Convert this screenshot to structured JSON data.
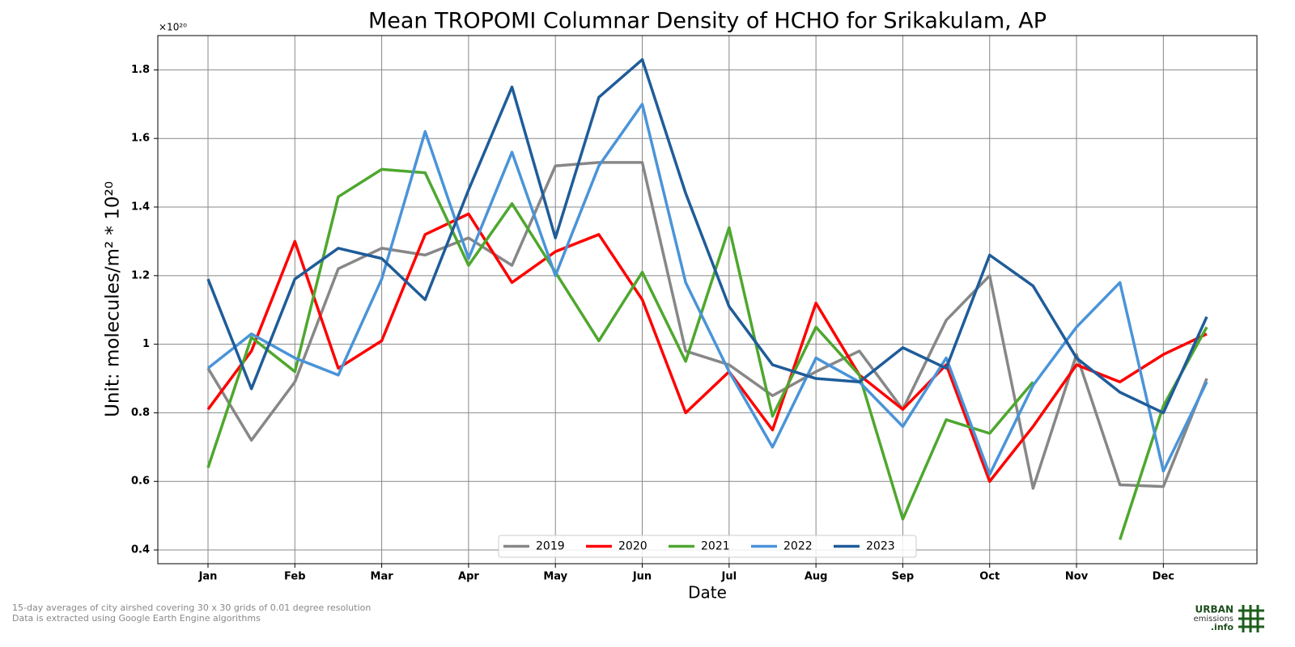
{
  "chart_data": {
    "type": "line",
    "title": "Mean TROPOMI Columnar Density of HCHO for Srikakulam, AP",
    "x_label": "Date",
    "y_label": "Unit: molecules/m² * 10²⁰",
    "y_offset_label": "×10²⁰",
    "footnotes": [
      "15-day averages of city airshed covering 30 x 30 grids of 0.01 degree resolution",
      "Data is extracted using Google Earth Engine algorithms"
    ],
    "logo": [
      "URBAN",
      "emissions",
      ".info"
    ],
    "categories": [
      "Jan",
      null,
      "Feb",
      null,
      "Mar",
      null,
      "Apr",
      null,
      "May",
      null,
      "Jun",
      null,
      "Jul",
      null,
      "Aug",
      null,
      "Sep",
      null,
      "Oct",
      null,
      "Nov",
      null,
      "Dec",
      null
    ],
    "ylim": [
      0.36,
      1.9
    ],
    "yticks": [
      0.4,
      0.6,
      0.8,
      1.0,
      1.2,
      1.4,
      1.6,
      1.8
    ],
    "grid": true,
    "legend": "lower center",
    "series": [
      {
        "name": "2019",
        "color": "#878787",
        "values": [
          0.93,
          0.72,
          0.89,
          1.22,
          1.28,
          1.26,
          1.31,
          1.23,
          1.52,
          1.53,
          1.53,
          0.98,
          0.94,
          0.85,
          0.92,
          0.98,
          0.81,
          1.07,
          1.2,
          0.58,
          0.97,
          0.59,
          0.585,
          0.9
        ]
      },
      {
        "name": "2020",
        "color": "#ff0000",
        "values": [
          0.81,
          0.98,
          1.3,
          0.93,
          1.01,
          1.32,
          1.38,
          1.18,
          1.27,
          1.32,
          1.13,
          0.8,
          0.92,
          0.75,
          1.12,
          0.91,
          0.81,
          0.94,
          0.6,
          0.76,
          0.94,
          0.89,
          0.97,
          1.03
        ]
      },
      {
        "name": "2021",
        "color": "#4ea72e",
        "values": [
          0.64,
          1.02,
          0.92,
          1.43,
          1.51,
          1.5,
          1.23,
          1.41,
          1.21,
          1.01,
          1.21,
          0.95,
          1.34,
          0.79,
          1.05,
          0.91,
          0.49,
          0.78,
          0.74,
          0.89,
          null,
          0.43,
          0.82,
          1.05
        ]
      },
      {
        "name": "2022",
        "color": "#4a94d8",
        "values": [
          0.93,
          1.03,
          0.96,
          0.91,
          1.19,
          1.62,
          1.25,
          1.56,
          1.2,
          1.52,
          1.7,
          1.18,
          0.92,
          0.7,
          0.96,
          0.89,
          0.76,
          0.96,
          0.62,
          0.88,
          1.05,
          1.18,
          0.63,
          0.89
        ]
      },
      {
        "name": "2023",
        "color": "#1f5c99",
        "values": [
          1.19,
          0.87,
          1.19,
          1.28,
          1.25,
          1.13,
          1.45,
          1.75,
          1.31,
          1.72,
          1.83,
          1.44,
          1.11,
          0.94,
          0.9,
          0.89,
          0.99,
          0.93,
          1.26,
          1.17,
          0.96,
          0.86,
          0.8,
          1.08
        ]
      }
    ]
  }
}
